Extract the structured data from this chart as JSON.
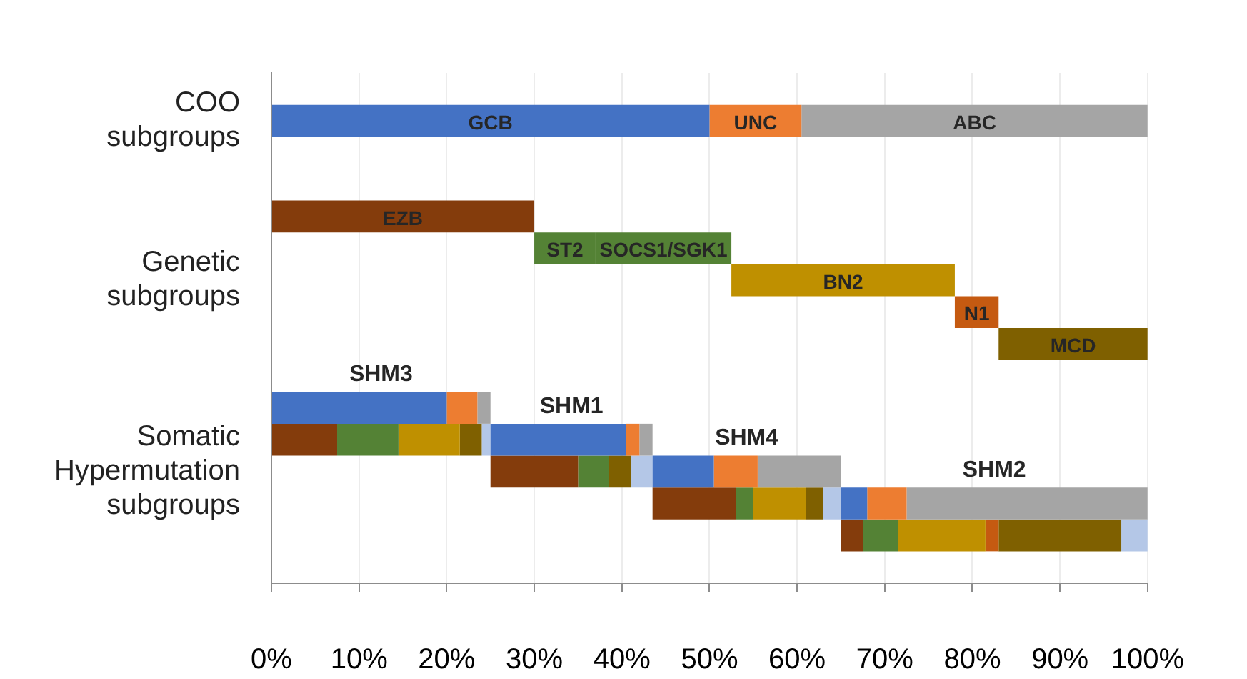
{
  "chart_data": {
    "type": "bar",
    "orientation": "horizontal",
    "legend": false,
    "grid": "x",
    "categories": [
      null,
      "COO subgroups",
      null,
      null,
      null,
      null,
      "Genetic subgroups",
      null,
      null,
      null,
      null,
      null,
      "Somatic Hypermutation subgroups",
      null,
      null,
      null
    ],
    "xlim": [
      0,
      100
    ],
    "xticks": [
      {
        "value": 0,
        "label": "0%"
      },
      {
        "value": 10,
        "label": "10%"
      },
      {
        "value": 20,
        "label": "20%"
      },
      {
        "value": 30,
        "label": "30%"
      },
      {
        "value": 40,
        "label": "40%"
      },
      {
        "value": 50,
        "label": "50%"
      },
      {
        "value": 60,
        "label": "60%"
      },
      {
        "value": 70,
        "label": "70%"
      },
      {
        "value": 80,
        "label": "80%"
      },
      {
        "value": 90,
        "label": "90%"
      },
      {
        "value": 100,
        "label": "100%"
      }
    ],
    "series": [
      {
        "name": "GCB",
        "color": "#4472c4",
        "values": [
          null,
          50,
          null,
          null,
          null,
          null,
          null,
          null,
          null,
          null,
          20,
          15.5,
          7,
          3,
          null,
          null
        ],
        "base": [
          null,
          0,
          null,
          null,
          null,
          null,
          null,
          null,
          null,
          null,
          0,
          25,
          43.5,
          65,
          null,
          null
        ]
      },
      {
        "name": "UNC",
        "color": "#ed7d31",
        "values": [
          null,
          10.5,
          null,
          null,
          null,
          null,
          null,
          null,
          null,
          null,
          3.5,
          1.5,
          5,
          4.5,
          null,
          null
        ],
        "base": [
          null,
          50,
          null,
          null,
          null,
          null,
          null,
          null,
          null,
          null,
          20,
          40.5,
          50.5,
          68,
          null,
          null
        ]
      },
      {
        "name": "ABC",
        "color": "#a5a5a5",
        "values": [
          null,
          39.5,
          null,
          null,
          null,
          null,
          null,
          null,
          null,
          null,
          1.5,
          1.5,
          9.5,
          27.5,
          null,
          null
        ],
        "base": [
          null,
          60.5,
          null,
          null,
          null,
          null,
          null,
          null,
          null,
          null,
          23.5,
          42,
          55.5,
          72.5,
          null,
          null
        ]
      },
      {
        "name": "EZB",
        "color": "#843c0c",
        "values": [
          null,
          null,
          null,
          null,
          30,
          null,
          null,
          null,
          null,
          null,
          null,
          7.5,
          10,
          9.5,
          2.5,
          null
        ],
        "base": [
          null,
          null,
          null,
          null,
          0,
          null,
          null,
          null,
          null,
          null,
          null,
          0,
          25,
          43.5,
          65,
          null
        ]
      },
      {
        "name": "ST2",
        "color": "#548235",
        "values": [
          null,
          null,
          null,
          null,
          null,
          7,
          null,
          null,
          null,
          null,
          null,
          7,
          3.5,
          2,
          4,
          null
        ],
        "base": [
          null,
          null,
          null,
          null,
          null,
          30,
          null,
          null,
          null,
          null,
          null,
          7.5,
          35,
          53,
          67.5,
          null
        ]
      },
      {
        "name": "SOCS1/SGK1",
        "color": "#548235",
        "values": [
          null,
          null,
          null,
          null,
          null,
          15.5,
          null,
          null,
          null,
          null,
          null,
          null,
          null,
          null,
          null,
          null
        ],
        "base": [
          null,
          null,
          null,
          null,
          null,
          37,
          null,
          null,
          null,
          null,
          null,
          null,
          null,
          null,
          null,
          null
        ]
      },
      {
        "name": "BN2",
        "color": "#bf9000",
        "values": [
          null,
          null,
          null,
          null,
          null,
          null,
          25.5,
          null,
          null,
          null,
          null,
          7,
          null,
          6,
          10,
          null
        ],
        "base": [
          null,
          null,
          null,
          null,
          null,
          null,
          52.5,
          null,
          null,
          null,
          null,
          14.5,
          null,
          55,
          71.5,
          null
        ]
      },
      {
        "name": "N1",
        "color": "#c55a11",
        "values": [
          null,
          null,
          null,
          null,
          null,
          null,
          null,
          5,
          null,
          null,
          null,
          null,
          null,
          null,
          1.5,
          null
        ],
        "base": [
          null,
          null,
          null,
          null,
          null,
          null,
          null,
          78,
          null,
          null,
          null,
          null,
          null,
          null,
          81.5,
          null
        ]
      },
      {
        "name": "MCD",
        "color": "#7f6000",
        "values": [
          null,
          null,
          null,
          null,
          null,
          null,
          null,
          null,
          17,
          null,
          null,
          2.5,
          2.5,
          2,
          14,
          null
        ],
        "base": [
          null,
          null,
          null,
          null,
          null,
          null,
          null,
          null,
          83,
          null,
          null,
          21.5,
          38.5,
          61,
          83,
          null
        ]
      },
      {
        "color": "#b4c7e7",
        "values": [
          null,
          null,
          null,
          null,
          null,
          null,
          null,
          null,
          null,
          null,
          null,
          1,
          2.5,
          2,
          3,
          null
        ],
        "base": [
          null,
          null,
          null,
          null,
          null,
          null,
          null,
          null,
          null,
          null,
          null,
          24,
          41,
          63,
          97,
          null
        ]
      }
    ],
    "annotations": [
      "SHM3",
      "SHM1",
      "SHM4",
      "SHM2"
    ]
  }
}
